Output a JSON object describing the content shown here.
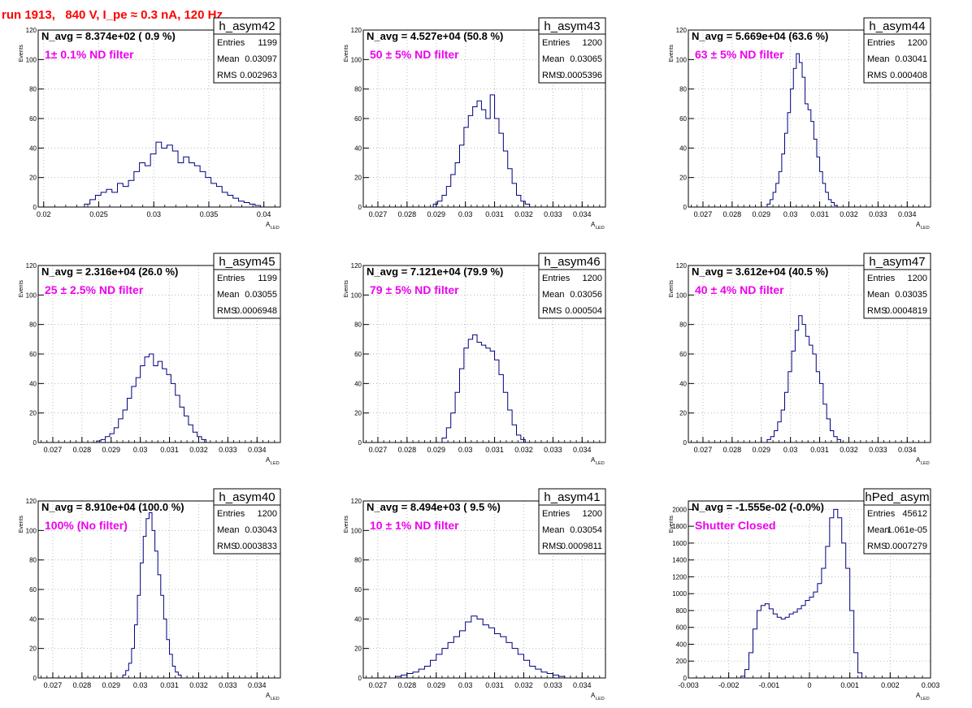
{
  "page": {
    "header": "run 1913,   840 V, I_pe ≈ 0.3 nA, 120 Hz",
    "colors": {
      "header": "#ff0000",
      "histogram": "#000080",
      "annotation": "#ee00ee",
      "grid": "#bbbbbb"
    },
    "stat_labels": {
      "entries": "Entries",
      "mean": "Mean",
      "rms": "RMS"
    },
    "y_axis_label": "Events",
    "x_axis_label": {
      "main": "A",
      "sub": "LED"
    },
    "grid": true
  },
  "chart_data": [
    {
      "type": "bar",
      "name": "h_asym42",
      "navg_text": "N_avg = 8.374e+02 ( 0.9 %)",
      "annotation": "1± 0.1% ND filter",
      "stats": {
        "entries": "1199",
        "mean": "0.03097",
        "rms": "0.002963"
      },
      "xlim": [
        0.0195,
        0.0415
      ],
      "ylim": [
        0,
        120
      ],
      "xticks": [
        "0.02",
        "0.025",
        "0.03",
        "0.035",
        "0.04"
      ],
      "yticks": [
        "0",
        "20",
        "40",
        "60",
        "80",
        "100",
        "120"
      ],
      "bins": {
        "lo": [
          0.0237,
          0.0242,
          0.0247,
          0.0252,
          0.0257,
          0.0262,
          0.0267,
          0.0272,
          0.0277,
          0.0282,
          0.0287,
          0.0292,
          0.0297,
          0.0302,
          0.0307,
          0.0312,
          0.0317,
          0.0322,
          0.0327,
          0.0332,
          0.0337,
          0.0342,
          0.0347,
          0.0352,
          0.0357,
          0.0362,
          0.0367,
          0.0372,
          0.0377,
          0.0382,
          0.0387,
          0.0392
        ],
        "values": [
          2,
          5,
          8,
          10,
          12,
          10,
          16,
          14,
          18,
          24,
          30,
          28,
          36,
          44,
          40,
          42,
          38,
          30,
          34,
          30,
          28,
          24,
          20,
          16,
          14,
          10,
          8,
          6,
          4,
          3,
          2,
          1
        ]
      }
    },
    {
      "type": "bar",
      "name": "h_asym43",
      "navg_text": "N_avg = 4.527e+04 (50.8 %)",
      "annotation": "50 ± 5% ND filter",
      "stats": {
        "entries": "1200",
        "mean": "0.03065",
        "rms": "0.0005396"
      },
      "xlim": [
        0.0265,
        0.0348
      ],
      "ylim": [
        0,
        120
      ],
      "xticks": [
        "0.027",
        "0.028",
        "0.029",
        "0.03",
        "0.031",
        "0.032",
        "0.033",
        "0.034"
      ],
      "yticks": [
        "0",
        "20",
        "40",
        "60",
        "80",
        "100",
        "120"
      ],
      "bins": {
        "lo": [
          0.0289,
          0.02905,
          0.0292,
          0.02935,
          0.0295,
          0.02965,
          0.0298,
          0.02995,
          0.0301,
          0.03025,
          0.0304,
          0.03055,
          0.0307,
          0.03085,
          0.031,
          0.03115,
          0.0313,
          0.03145,
          0.0316,
          0.03175,
          0.0319,
          0.03205
        ],
        "values": [
          2,
          4,
          8,
          14,
          22,
          30,
          42,
          54,
          62,
          68,
          72,
          66,
          60,
          76,
          60,
          50,
          38,
          26,
          16,
          8,
          4,
          2
        ]
      }
    },
    {
      "type": "bar",
      "name": "h_asym44",
      "navg_text": "N_avg = 5.669e+04 (63.6 %)",
      "annotation": "63 ± 5% ND filter",
      "stats": {
        "entries": "1200",
        "mean": "0.03041",
        "rms": "0.000408"
      },
      "xlim": [
        0.0265,
        0.0348
      ],
      "ylim": [
        0,
        120
      ],
      "xticks": [
        "0.027",
        "0.028",
        "0.029",
        "0.03",
        "0.031",
        "0.032",
        "0.033",
        "0.034"
      ],
      "yticks": [
        "0",
        "20",
        "40",
        "60",
        "80",
        "100",
        "120"
      ],
      "bins": {
        "lo": [
          0.0292,
          0.0293,
          0.0294,
          0.0295,
          0.0296,
          0.0297,
          0.0298,
          0.0299,
          0.03,
          0.0301,
          0.0302,
          0.0303,
          0.0304,
          0.0305,
          0.0306,
          0.0307,
          0.0308,
          0.0309,
          0.031,
          0.0311,
          0.0312,
          0.0313,
          0.0314,
          0.0315
        ],
        "values": [
          2,
          5,
          10,
          16,
          24,
          36,
          50,
          64,
          80,
          94,
          104,
          98,
          88,
          70,
          66,
          58,
          46,
          34,
          24,
          16,
          10,
          5,
          3,
          1
        ]
      }
    },
    {
      "type": "bar",
      "name": "h_asym45",
      "navg_text": "N_avg = 2.316e+04 (26.0 %)",
      "annotation": "25 ± 2.5% ND filter",
      "stats": {
        "entries": "1199",
        "mean": "0.03055",
        "rms": "0.0006948"
      },
      "xlim": [
        0.0265,
        0.0348
      ],
      "ylim": [
        0,
        120
      ],
      "xticks": [
        "0.027",
        "0.028",
        "0.029",
        "0.03",
        "0.031",
        "0.032",
        "0.033",
        "0.034"
      ],
      "yticks": [
        "0",
        "20",
        "40",
        "60",
        "80",
        "100",
        "120"
      ],
      "bins": {
        "lo": [
          0.0285,
          0.02865,
          0.0288,
          0.02895,
          0.0291,
          0.02925,
          0.0294,
          0.02955,
          0.0297,
          0.02985,
          0.03,
          0.03015,
          0.0303,
          0.03045,
          0.0306,
          0.03075,
          0.0309,
          0.03105,
          0.0312,
          0.03135,
          0.0315,
          0.03165,
          0.0318,
          0.03195,
          0.0321
        ],
        "values": [
          1,
          2,
          4,
          6,
          10,
          16,
          22,
          30,
          38,
          44,
          52,
          58,
          60,
          52,
          55,
          50,
          46,
          40,
          32,
          24,
          18,
          12,
          7,
          4,
          2
        ]
      }
    },
    {
      "type": "bar",
      "name": "h_asym46",
      "navg_text": "N_avg = 7.121e+04 (79.9 %)",
      "annotation": "79 ± 5% ND filter",
      "stats": {
        "entries": "1200",
        "mean": "0.03056",
        "rms": "0.000504"
      },
      "xlim": [
        0.0265,
        0.0348
      ],
      "ylim": [
        0,
        120
      ],
      "xticks": [
        "0.027",
        "0.028",
        "0.029",
        "0.03",
        "0.031",
        "0.032",
        "0.033",
        "0.034"
      ],
      "yticks": [
        "0",
        "20",
        "40",
        "60",
        "80",
        "100",
        "120"
      ],
      "bins": {
        "lo": [
          0.0292,
          0.02935,
          0.0295,
          0.02965,
          0.0298,
          0.02995,
          0.0301,
          0.03025,
          0.0304,
          0.03055,
          0.0307,
          0.03085,
          0.031,
          0.03115,
          0.0313,
          0.03145,
          0.0316,
          0.03175,
          0.0319
        ],
        "values": [
          3,
          10,
          20,
          34,
          50,
          64,
          70,
          73,
          68,
          66,
          64,
          62,
          56,
          46,
          34,
          22,
          12,
          5,
          2
        ]
      }
    },
    {
      "type": "bar",
      "name": "h_asym47",
      "navg_text": "N_avg = 3.612e+04 (40.5 %)",
      "annotation": "40 ± 4% ND filter",
      "stats": {
        "entries": "1200",
        "mean": "0.03035",
        "rms": "0.0004819"
      },
      "xlim": [
        0.0265,
        0.0348
      ],
      "ylim": [
        0,
        120
      ],
      "xticks": [
        "0.027",
        "0.028",
        "0.029",
        "0.03",
        "0.031",
        "0.032",
        "0.033",
        "0.034"
      ],
      "yticks": [
        "0",
        "20",
        "40",
        "60",
        "80",
        "100",
        "120"
      ],
      "bins": {
        "lo": [
          0.0292,
          0.02932,
          0.02944,
          0.02956,
          0.02968,
          0.0298,
          0.02992,
          0.03004,
          0.03016,
          0.03028,
          0.0304,
          0.03052,
          0.03064,
          0.03076,
          0.03088,
          0.031,
          0.03112,
          0.03124,
          0.03136,
          0.03148,
          0.0316
        ],
        "values": [
          2,
          4,
          8,
          14,
          22,
          34,
          48,
          62,
          76,
          86,
          80,
          72,
          66,
          60,
          48,
          40,
          26,
          16,
          8,
          4,
          2
        ]
      }
    },
    {
      "type": "bar",
      "name": "h_asym40",
      "navg_text": "N_avg = 8.910e+04 (100.0 %)",
      "annotation": "100% (No filter)",
      "stats": {
        "entries": "1200",
        "mean": "0.03043",
        "rms": "0.0003833"
      },
      "xlim": [
        0.0265,
        0.0348
      ],
      "ylim": [
        0,
        120
      ],
      "xticks": [
        "0.027",
        "0.028",
        "0.029",
        "0.03",
        "0.031",
        "0.032",
        "0.033",
        "0.034"
      ],
      "yticks": [
        "0",
        "20",
        "40",
        "60",
        "80",
        "100",
        "120"
      ],
      "bins": {
        "lo": [
          0.0294,
          0.0295,
          0.0296,
          0.0297,
          0.0298,
          0.0299,
          0.03,
          0.0301,
          0.0302,
          0.0303,
          0.0304,
          0.0305,
          0.0306,
          0.0307,
          0.0308,
          0.0309,
          0.031,
          0.0311,
          0.0312,
          0.0313
        ],
        "values": [
          2,
          5,
          10,
          20,
          36,
          56,
          78,
          96,
          108,
          112,
          100,
          86,
          70,
          56,
          40,
          26,
          16,
          8,
          4,
          2
        ]
      }
    },
    {
      "type": "bar",
      "name": "h_asym41",
      "navg_text": "N_avg = 8.494e+03 ( 9.5 %)",
      "annotation": "10 ± 1% ND filter",
      "stats": {
        "entries": "1200",
        "mean": "0.03054",
        "rms": "0.0009811"
      },
      "xlim": [
        0.0265,
        0.0348
      ],
      "ylim": [
        0,
        120
      ],
      "xticks": [
        "0.027",
        "0.028",
        "0.029",
        "0.03",
        "0.031",
        "0.032",
        "0.033",
        "0.034"
      ],
      "yticks": [
        "0",
        "20",
        "40",
        "60",
        "80",
        "100",
        "120"
      ],
      "bins": {
        "lo": [
          0.0276,
          0.0278,
          0.028,
          0.0282,
          0.0284,
          0.0286,
          0.0288,
          0.029,
          0.0292,
          0.0294,
          0.0296,
          0.0298,
          0.03,
          0.0302,
          0.0304,
          0.0306,
          0.0308,
          0.031,
          0.0312,
          0.0314,
          0.0316,
          0.0318,
          0.032,
          0.0322,
          0.0324,
          0.0326,
          0.0328,
          0.033,
          0.0332
        ],
        "values": [
          1,
          2,
          3,
          4,
          6,
          8,
          12,
          16,
          20,
          24,
          28,
          32,
          38,
          42,
          40,
          36,
          34,
          30,
          28,
          24,
          20,
          16,
          12,
          8,
          6,
          4,
          3,
          2,
          1
        ]
      }
    },
    {
      "type": "bar",
      "name": "hPed_asym",
      "navg_text": "N_avg = -1.555e-02 (-0.0%)",
      "annotation": "Shutter Closed",
      "stats": {
        "entries": "45612",
        "mean": "1.061e-05",
        "rms": "0.0007279"
      },
      "xlim": [
        -0.003,
        0.003
      ],
      "ylim": [
        0,
        2100
      ],
      "xticks": [
        "-0.003",
        "-0.002",
        "-0.001",
        "0",
        "0.001",
        "0.002",
        "0.003"
      ],
      "yticks": [
        "0",
        "200",
        "400",
        "600",
        "800",
        "1000",
        "1200",
        "1400",
        "1600",
        "1800",
        "2000"
      ],
      "bins": {
        "lo": [
          -0.0017,
          -0.0016,
          -0.0015,
          -0.0014,
          -0.0013,
          -0.0012,
          -0.0011,
          -0.001,
          -0.0009,
          -0.0008,
          -0.0007,
          -0.0006,
          -0.0005,
          -0.0004,
          -0.0003,
          -0.0002,
          -0.0001,
          0.0,
          0.0001,
          0.0002,
          0.0003,
          0.0004,
          0.0005,
          0.0006,
          0.0007,
          0.0008,
          0.0009,
          0.001,
          0.0011,
          0.0012
        ],
        "values": [
          20,
          100,
          300,
          580,
          800,
          860,
          880,
          820,
          760,
          720,
          700,
          720,
          760,
          780,
          820,
          860,
          920,
          960,
          1020,
          1120,
          1300,
          1560,
          1900,
          2000,
          1900,
          1600,
          1300,
          800,
          300,
          60
        ]
      }
    }
  ]
}
